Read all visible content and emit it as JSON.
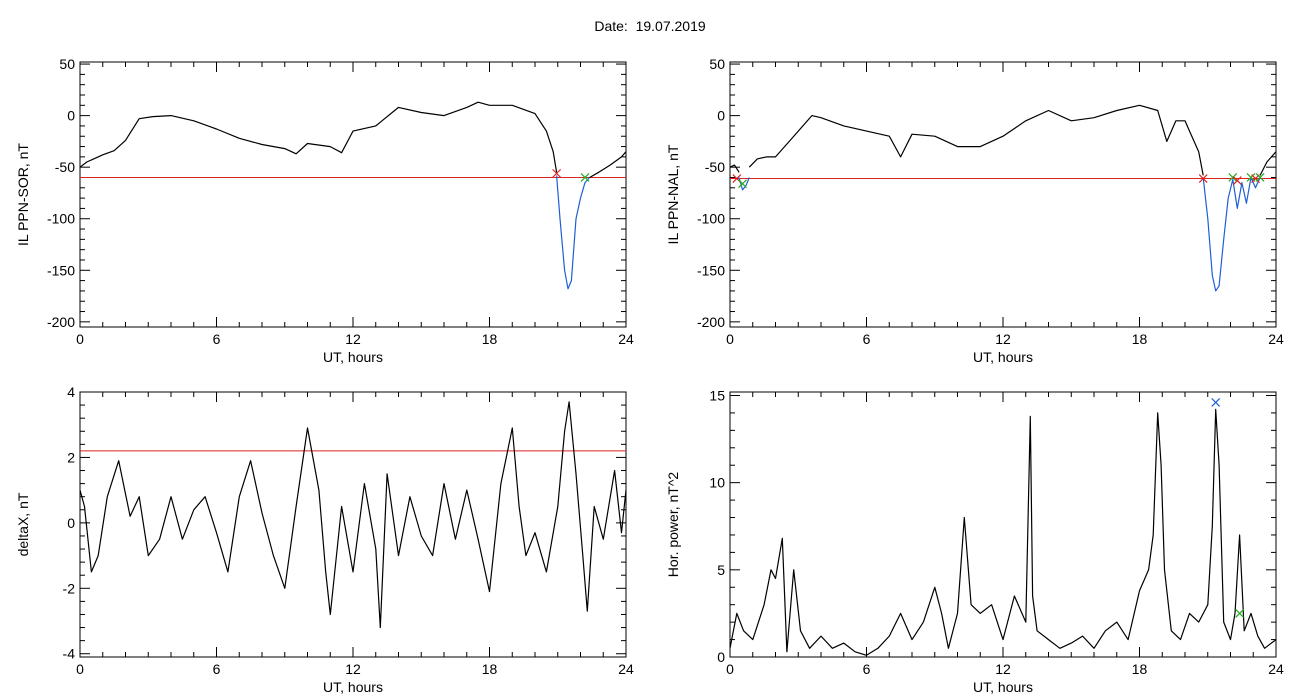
{
  "page": {
    "title": "Date:  19.07.2019"
  },
  "chart_data": [
    {
      "type": "line",
      "xlabel": "UT, hours",
      "ylabel": "IL PPN-SOR, nT",
      "xlim": [
        0,
        24
      ],
      "ylim": [
        -205,
        52
      ],
      "xticks": [
        0,
        6,
        12,
        18,
        24
      ],
      "yticks": [
        -200,
        -150,
        -100,
        -50,
        0,
        50
      ],
      "threshold": -60,
      "series": [
        {
          "color": "#000000",
          "x": [
            0,
            0.3,
            0.6,
            1.0,
            1.5,
            2.0,
            2.6,
            3.2,
            4.0,
            5.0,
            6.0,
            7.0,
            8.0,
            9.0,
            9.5,
            10.0,
            11.0,
            11.5,
            12.0,
            13.0,
            14.0,
            15.0,
            16.0,
            17.0,
            17.5,
            18.0,
            19.0,
            20.0,
            20.5,
            20.8,
            20.95
          ],
          "y": [
            -50,
            -45,
            -42,
            -38,
            -34,
            -24,
            -3,
            -1,
            0,
            -5,
            -13,
            -22,
            -28,
            -32,
            -37,
            -27,
            -30,
            -36,
            -15,
            -10,
            8,
            3,
            0,
            8,
            13,
            10,
            10,
            2,
            -15,
            -35,
            -55
          ]
        },
        {
          "color": "#1f5fd6",
          "x": [
            20.95,
            21.1,
            21.3,
            21.45,
            21.6,
            21.8,
            22.0,
            22.2,
            22.4
          ],
          "y": [
            -58,
            -100,
            -150,
            -168,
            -160,
            -100,
            -80,
            -65,
            -60
          ]
        },
        {
          "color": "#000000",
          "x": [
            22.4,
            22.8,
            23.3,
            23.8,
            24
          ],
          "y": [
            -60,
            -55,
            -48,
            -40,
            -35
          ]
        }
      ],
      "markers": [
        {
          "x": 20.95,
          "y": -56,
          "color": "#dd2222"
        },
        {
          "x": 22.2,
          "y": -60,
          "color": "#22aa22"
        }
      ]
    },
    {
      "type": "line",
      "xlabel": "UT, hours",
      "ylabel": "IL PPN-NAL, nT",
      "xlim": [
        0,
        24
      ],
      "ylim": [
        -205,
        52
      ],
      "xticks": [
        0,
        6,
        12,
        18,
        24
      ],
      "yticks": [
        -200,
        -150,
        -100,
        -50,
        0,
        50
      ],
      "threshold": -61,
      "series": [
        {
          "color": "#000000",
          "x": [
            0,
            0.2,
            0.4
          ],
          "y": [
            -50,
            -48,
            -55
          ]
        },
        {
          "color": "#1f5fd6",
          "x": [
            0.4,
            0.55,
            0.7,
            0.85
          ],
          "y": [
            -60,
            -72,
            -68,
            -60
          ]
        },
        {
          "color": "#000000",
          "x": [
            0.85,
            1.2,
            1.6,
            2.0,
            2.4,
            3.0,
            3.6,
            4.0,
            5.0,
            6.0,
            7.0,
            7.5,
            8.0,
            9.0,
            10.0,
            11.0,
            12.0,
            13.0,
            14.0,
            15.0,
            16.0,
            17.0,
            18.0,
            18.8,
            19.2,
            19.6,
            20.0,
            20.3,
            20.6,
            20.8
          ],
          "y": [
            -50,
            -42,
            -40,
            -40,
            -30,
            -15,
            0,
            -2,
            -10,
            -15,
            -20,
            -40,
            -18,
            -20,
            -30,
            -30,
            -20,
            -5,
            5,
            -5,
            -2,
            5,
            10,
            5,
            -25,
            -5,
            -5,
            -20,
            -35,
            -58
          ]
        },
        {
          "color": "#1f5fd6",
          "x": [
            20.8,
            21.0,
            21.2,
            21.35,
            21.5,
            21.7,
            21.9,
            22.1,
            22.3,
            22.5,
            22.7,
            22.9,
            23.1,
            23.3
          ],
          "y": [
            -60,
            -100,
            -155,
            -170,
            -165,
            -120,
            -80,
            -62,
            -90,
            -65,
            -85,
            -60,
            -70,
            -60
          ]
        },
        {
          "color": "#000000",
          "x": [
            23.3,
            23.6,
            24
          ],
          "y": [
            -58,
            -45,
            -35
          ]
        }
      ],
      "markers": [
        {
          "x": 0.3,
          "y": -61,
          "color": "#dd2222"
        },
        {
          "x": 0.55,
          "y": -66,
          "color": "#22aa22"
        },
        {
          "x": 20.8,
          "y": -61,
          "color": "#dd2222"
        },
        {
          "x": 22.1,
          "y": -60,
          "color": "#22aa22"
        },
        {
          "x": 22.3,
          "y": -63,
          "color": "#dd2222"
        },
        {
          "x": 22.9,
          "y": -60,
          "color": "#22aa22"
        },
        {
          "x": 23.1,
          "y": -61,
          "color": "#dd2222"
        },
        {
          "x": 23.3,
          "y": -60,
          "color": "#22aa22"
        }
      ]
    },
    {
      "type": "line",
      "xlabel": "UT, hours",
      "ylabel": "deltaX, nT",
      "xlim": [
        0,
        24
      ],
      "ylim": [
        -4.1,
        4.0
      ],
      "xticks": [
        0,
        6,
        12,
        18,
        24
      ],
      "yticks": [
        -4,
        -2,
        0,
        2,
        4
      ],
      "threshold": 2.2,
      "series": [
        {
          "color": "#000000",
          "x": [
            0,
            0.2,
            0.5,
            0.8,
            1.2,
            1.7,
            2.2,
            2.6,
            3.0,
            3.5,
            4.0,
            4.5,
            5.0,
            5.5,
            6.0,
            6.5,
            7.0,
            7.5,
            8.0,
            8.5,
            9.0,
            9.5,
            10.0,
            10.5,
            10.8,
            11.0,
            11.5,
            12.0,
            12.5,
            13.0,
            13.2,
            13.5,
            14.0,
            14.5,
            15.0,
            15.5,
            16.0,
            16.5,
            17.0,
            17.5,
            18.0,
            18.5,
            19.0,
            19.3,
            19.6,
            20.0,
            20.5,
            21.0,
            21.3,
            21.5,
            21.8,
            22.1,
            22.3,
            22.6,
            23.0,
            23.5,
            23.8,
            24
          ],
          "y": [
            1.0,
            0.5,
            -1.5,
            -1.0,
            0.8,
            1.9,
            0.2,
            0.8,
            -1.0,
            -0.5,
            0.8,
            -0.5,
            0.4,
            0.8,
            -0.3,
            -1.5,
            0.8,
            1.9,
            0.3,
            -1.0,
            -2.0,
            0.5,
            2.9,
            1.0,
            -1.5,
            -2.8,
            0.5,
            -1.5,
            1.2,
            -0.8,
            -3.2,
            1.5,
            -1.0,
            0.8,
            -0.4,
            -1.0,
            1.2,
            -0.5,
            1.0,
            -0.5,
            -2.1,
            1.2,
            2.9,
            0.5,
            -1.0,
            -0.3,
            -1.5,
            0.5,
            2.8,
            3.7,
            1.5,
            -1.0,
            -2.7,
            0.5,
            -0.5,
            1.6,
            -0.3,
            1.0
          ]
        }
      ],
      "markers": []
    },
    {
      "type": "line",
      "xlabel": "UT, hours",
      "ylabel": "Hor. power, nT^2",
      "xlim": [
        0,
        24
      ],
      "ylim": [
        0,
        15.2
      ],
      "xticks": [
        0,
        6,
        12,
        18,
        24
      ],
      "yticks": [
        0,
        5,
        10,
        15
      ],
      "threshold": null,
      "series": [
        {
          "color": "#000000",
          "x": [
            0,
            0.3,
            0.6,
            1.0,
            1.5,
            1.8,
            2.0,
            2.3,
            2.5,
            2.8,
            3.1,
            3.5,
            4.0,
            4.5,
            5.0,
            5.5,
            6.0,
            6.5,
            7.0,
            7.5,
            8.0,
            8.5,
            9.0,
            9.3,
            9.6,
            10.0,
            10.3,
            10.6,
            11.0,
            11.5,
            12.0,
            12.5,
            13.0,
            13.2,
            13.3,
            13.5,
            14.0,
            14.5,
            15.0,
            15.5,
            16.0,
            16.5,
            17.0,
            17.5,
            18.0,
            18.4,
            18.6,
            18.8,
            18.95,
            19.1,
            19.4,
            19.8,
            20.2,
            20.6,
            21.0,
            21.2,
            21.35,
            21.5,
            21.7,
            22.0,
            22.2,
            22.4,
            22.6,
            22.9,
            23.2,
            23.5,
            24
          ],
          "y": [
            0.5,
            2.5,
            1.5,
            1.0,
            3.0,
            5.0,
            4.5,
            6.8,
            0.3,
            5.0,
            1.5,
            0.5,
            1.2,
            0.5,
            0.8,
            0.3,
            0.1,
            0.5,
            1.2,
            2.5,
            1.0,
            2.0,
            4.0,
            2.5,
            0.5,
            2.5,
            8.0,
            3.0,
            2.5,
            3.0,
            1.0,
            3.5,
            2.0,
            13.8,
            3.5,
            1.5,
            1.0,
            0.5,
            0.8,
            1.2,
            0.5,
            1.5,
            2.0,
            1.0,
            3.8,
            5.0,
            7.0,
            14.0,
            11.0,
            5.0,
            1.5,
            1.0,
            2.5,
            2.0,
            3.0,
            7.5,
            14.2,
            11.0,
            2.0,
            1.0,
            2.5,
            7.0,
            1.5,
            2.5,
            1.2,
            0.5,
            1.0
          ]
        }
      ],
      "markers": [
        {
          "x": 21.35,
          "y": 14.6,
          "color": "#1f5fd6"
        },
        {
          "x": 22.4,
          "y": 2.5,
          "color": "#22aa22"
        }
      ]
    }
  ]
}
